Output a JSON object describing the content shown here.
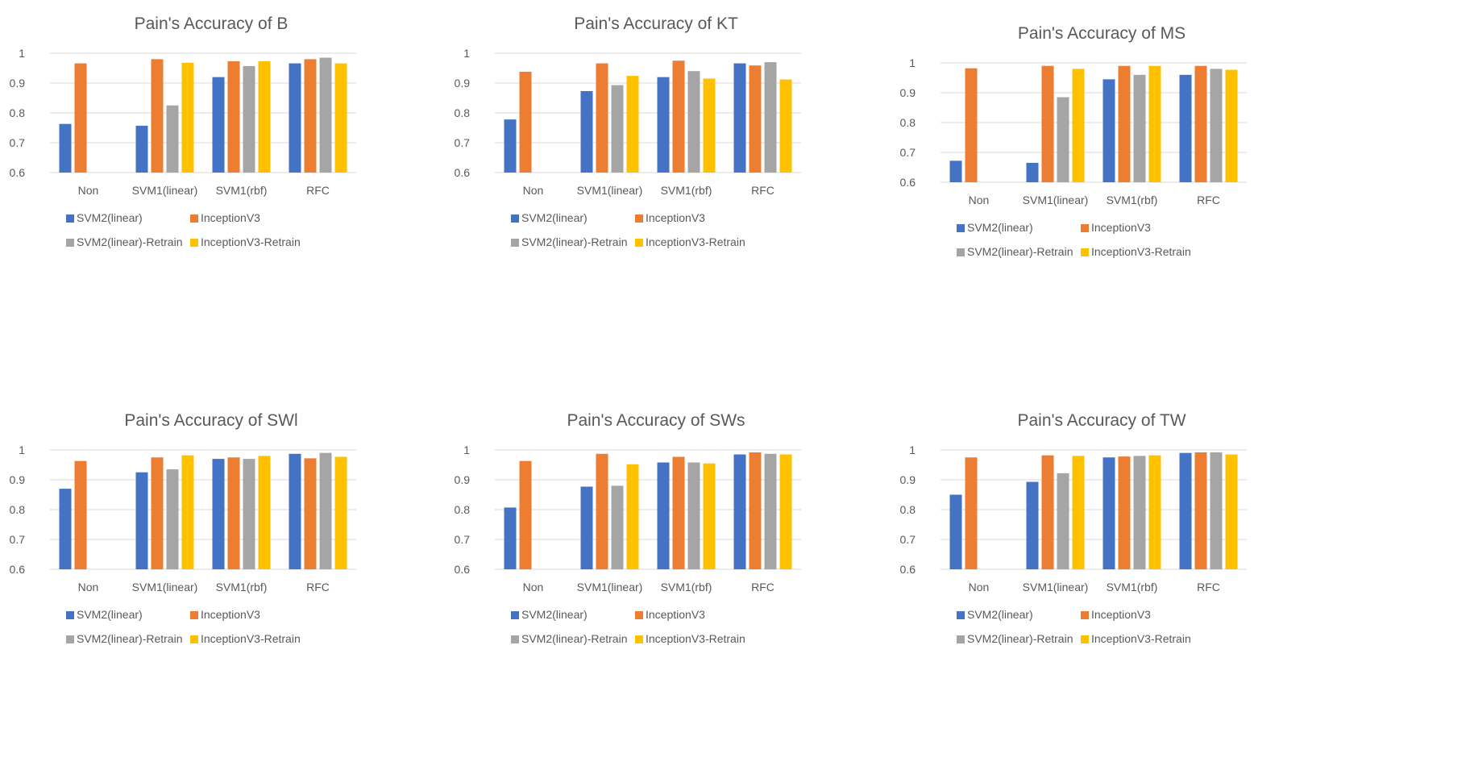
{
  "colors": {
    "SVM2(linear)": "#4472C4",
    "InceptionV3": "#ED7D31",
    "SVM2(linear)-Retrain": "#A5A5A5",
    "InceptionV3-Retrain": "#FFC000",
    "grid": "#D9D9D9",
    "text": "#595959"
  },
  "chart_data": [
    {
      "type": "bar",
      "title": "Pain's Accuracy of B",
      "categories": [
        "Non",
        "SVM1(linear)",
        "SVM1(rbf)",
        "RFC"
      ],
      "ylim": [
        0.6,
        1
      ],
      "yticks": [
        "0.6",
        "0.7",
        "0.8",
        "0.9",
        "1"
      ],
      "legend": "bottom",
      "series": [
        {
          "name": "SVM2(linear)",
          "values": [
            0.763,
            0.757,
            0.92,
            0.966
          ]
        },
        {
          "name": "InceptionV3",
          "values": [
            0.966,
            0.98,
            0.973,
            0.98
          ]
        },
        {
          "name": "SVM2(linear)-Retrain",
          "values": [
            null,
            0.825,
            0.957,
            0.985
          ]
        },
        {
          "name": "InceptionV3-Retrain",
          "values": [
            null,
            0.968,
            0.973,
            0.966
          ]
        }
      ]
    },
    {
      "type": "bar",
      "title": "Pain's Accuracy of KT",
      "categories": [
        "Non",
        "SVM1(linear)",
        "SVM1(rbf)",
        "RFC"
      ],
      "ylim": [
        0.6,
        1
      ],
      "yticks": [
        "0.6",
        "0.7",
        "0.8",
        "0.9",
        "1"
      ],
      "legend": "bottom",
      "series": [
        {
          "name": "SVM2(linear)",
          "values": [
            0.778,
            0.873,
            0.92,
            0.966
          ]
        },
        {
          "name": "InceptionV3",
          "values": [
            0.938,
            0.966,
            0.975,
            0.959
          ]
        },
        {
          "name": "SVM2(linear)-Retrain",
          "values": [
            null,
            0.893,
            0.94,
            0.97
          ]
        },
        {
          "name": "InceptionV3-Retrain",
          "values": [
            null,
            0.924,
            0.915,
            0.912
          ]
        }
      ]
    },
    {
      "type": "bar",
      "title": "Pain's Accuracy of MS",
      "categories": [
        "Non",
        "SVM1(linear)",
        "SVM1(rbf)",
        "RFC"
      ],
      "ylim": [
        0.6,
        1
      ],
      "yticks": [
        "0.6",
        "0.7",
        "0.8",
        "0.9",
        "1"
      ],
      "legend": "bottom",
      "series": [
        {
          "name": "SVM2(linear)",
          "values": [
            0.672,
            0.665,
            0.945,
            0.96
          ]
        },
        {
          "name": "InceptionV3",
          "values": [
            0.982,
            0.99,
            0.99,
            0.99
          ]
        },
        {
          "name": "SVM2(linear)-Retrain",
          "values": [
            null,
            0.885,
            0.96,
            0.98
          ]
        },
        {
          "name": "InceptionV3-Retrain",
          "values": [
            null,
            0.98,
            0.99,
            0.977
          ]
        }
      ]
    },
    {
      "type": "bar",
      "title": "Pain's Accuracy of SWl",
      "categories": [
        "Non",
        "SVM1(linear)",
        "SVM1(rbf)",
        "RFC"
      ],
      "ylim": [
        0.6,
        1
      ],
      "yticks": [
        "0.6",
        "0.7",
        "0.8",
        "0.9",
        "1"
      ],
      "legend": "bottom",
      "series": [
        {
          "name": "SVM2(linear)",
          "values": [
            0.87,
            0.925,
            0.97,
            0.987
          ]
        },
        {
          "name": "InceptionV3",
          "values": [
            0.963,
            0.975,
            0.975,
            0.972
          ]
        },
        {
          "name": "SVM2(linear)-Retrain",
          "values": [
            null,
            0.935,
            0.97,
            0.99
          ]
        },
        {
          "name": "InceptionV3-Retrain",
          "values": [
            null,
            0.982,
            0.98,
            0.977
          ]
        }
      ]
    },
    {
      "type": "bar",
      "title": "Pain's Accuracy of SWs",
      "categories": [
        "Non",
        "SVM1(linear)",
        "SVM1(rbf)",
        "RFC"
      ],
      "ylim": [
        0.6,
        1
      ],
      "yticks": [
        "0.6",
        "0.7",
        "0.8",
        "0.9",
        "1"
      ],
      "legend": "bottom",
      "series": [
        {
          "name": "SVM2(linear)",
          "values": [
            0.807,
            0.877,
            0.958,
            0.985
          ]
        },
        {
          "name": "InceptionV3",
          "values": [
            0.963,
            0.987,
            0.977,
            0.992
          ]
        },
        {
          "name": "SVM2(linear)-Retrain",
          "values": [
            null,
            0.88,
            0.958,
            0.987
          ]
        },
        {
          "name": "InceptionV3-Retrain",
          "values": [
            null,
            0.952,
            0.955,
            0.985
          ]
        }
      ]
    },
    {
      "type": "bar",
      "title": "Pain's Accuracy of TW",
      "categories": [
        "Non",
        "SVM1(linear)",
        "SVM1(rbf)",
        "RFC"
      ],
      "ylim": [
        0.6,
        1
      ],
      "yticks": [
        "0.6",
        "0.7",
        "0.8",
        "0.9",
        "1"
      ],
      "legend": "bottom",
      "series": [
        {
          "name": "SVM2(linear)",
          "values": [
            0.85,
            0.893,
            0.975,
            0.99
          ]
        },
        {
          "name": "InceptionV3",
          "values": [
            0.975,
            0.982,
            0.978,
            0.992
          ]
        },
        {
          "name": "SVM2(linear)-Retrain",
          "values": [
            null,
            0.922,
            0.98,
            0.992
          ]
        },
        {
          "name": "InceptionV3-Retrain",
          "values": [
            null,
            0.98,
            0.982,
            0.985
          ]
        }
      ]
    }
  ]
}
